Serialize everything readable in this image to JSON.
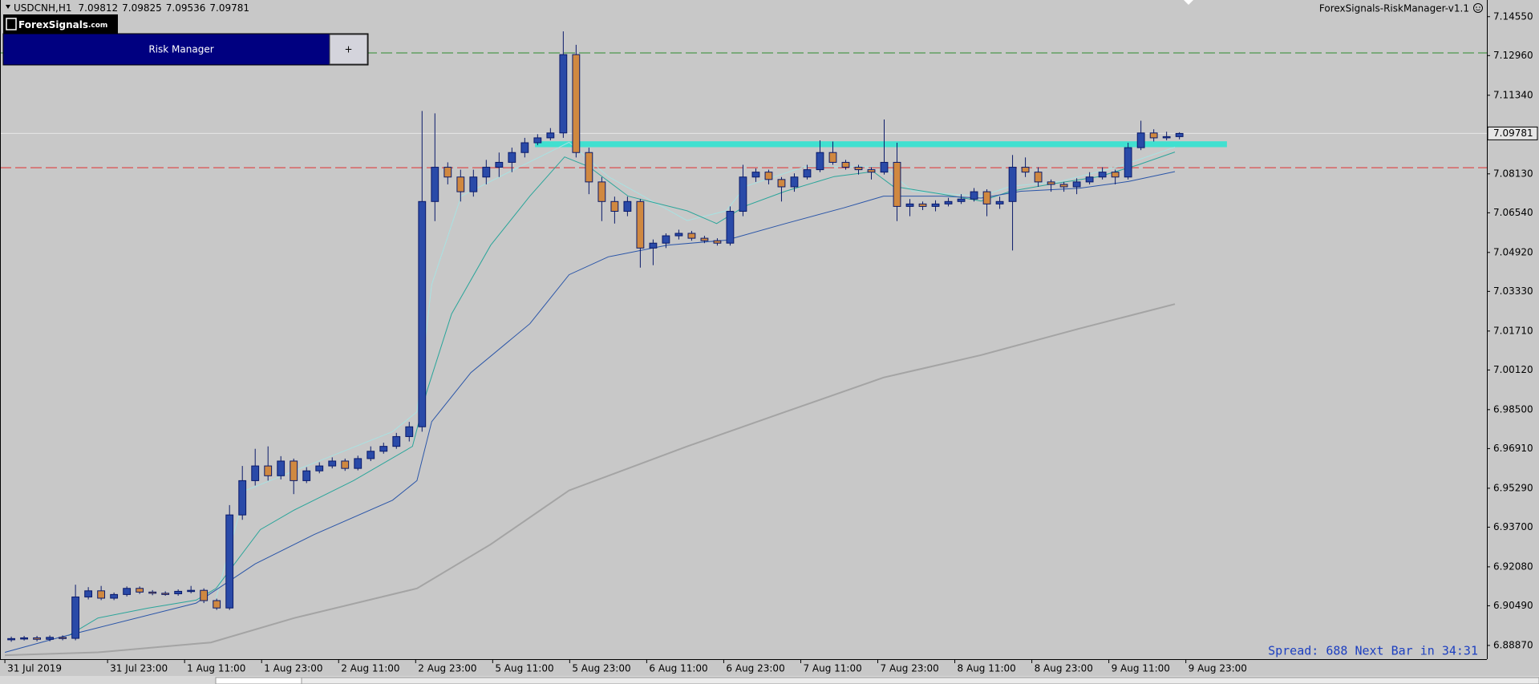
{
  "chart_data": {
    "type": "candlestick",
    "header": {
      "symbol": "USDCNH,H1",
      "quote": [
        "7.09812",
        "7.09825",
        "7.09536",
        "7.09781"
      ]
    },
    "panel": {
      "logo": "ForexSignals",
      "logo_suffix": ".com",
      "title": "Risk Manager",
      "button": "+"
    },
    "indicator": "ForexSignals-RiskManager-v1.1",
    "status": "Spread: 688 Next Bar in 34:31",
    "xlim": [
      -0.76,
      230.9
    ],
    "ylim": [
      6.8831,
      7.1523
    ],
    "grid": false,
    "xticks": [
      {
        "value": 0,
        "label": "31 Jul 2019"
      },
      {
        "value": 16,
        "label": "31 Jul 23:00"
      },
      {
        "value": 28,
        "label": "1 Aug 11:00"
      },
      {
        "value": 40,
        "label": "1 Aug 23:00"
      },
      {
        "value": 52,
        "label": "2 Aug 11:00"
      },
      {
        "value": 64,
        "label": "2 Aug 23:00"
      },
      {
        "value": 76,
        "label": "5 Aug 11:00"
      },
      {
        "value": 88,
        "label": "5 Aug 23:00"
      },
      {
        "value": 100,
        "label": "6 Aug 11:00"
      },
      {
        "value": 112,
        "label": "6 Aug 23:00"
      },
      {
        "value": 124,
        "label": "7 Aug 11:00"
      },
      {
        "value": 136,
        "label": "7 Aug 23:00"
      },
      {
        "value": 148,
        "label": "8 Aug 11:00"
      },
      {
        "value": 160,
        "label": "8 Aug 23:00"
      },
      {
        "value": 172,
        "label": "9 Aug 11:00"
      },
      {
        "value": 184,
        "label": "9 Aug 23:00"
      }
    ],
    "yticks": [
      {
        "value": 7.1455,
        "label": "7.14550"
      },
      {
        "value": 7.1296,
        "label": "7.12960"
      },
      {
        "value": 7.1134,
        "label": "7.11340"
      },
      {
        "value": 7.0813,
        "label": "7.08130"
      },
      {
        "value": 7.0654,
        "label": "7.06540"
      },
      {
        "value": 7.0492,
        "label": "7.04920"
      },
      {
        "value": 7.0333,
        "label": "7.03330"
      },
      {
        "value": 7.0171,
        "label": "7.01710"
      },
      {
        "value": 7.0012,
        "label": "7.00120"
      },
      {
        "value": 6.985,
        "label": "6.98500"
      },
      {
        "value": 6.9691,
        "label": "6.96910"
      },
      {
        "value": 6.9529,
        "label": "6.95290"
      },
      {
        "value": 6.937,
        "label": "6.93700"
      },
      {
        "value": 6.9208,
        "label": "6.92080"
      },
      {
        "value": 6.9049,
        "label": "6.90490"
      },
      {
        "value": 6.8887,
        "label": "6.88870"
      }
    ],
    "current_price": {
      "value": 7.09781,
      "label": "7.09781",
      "color": "#e6e6e6"
    },
    "levels": [
      {
        "value": 7.1307,
        "color": "#2e8b2e"
      },
      {
        "value": 7.0838,
        "color": "#e03030"
      }
    ],
    "zone": {
      "x": [
        82.6,
        190.4
      ],
      "y": [
        7.0922,
        7.0946
      ],
      "color": "#40e0d0"
    },
    "up_color": "#2a4aa8",
    "down_color": "#d08840",
    "outline_color": "#0a1a6a",
    "x": [
      1,
      3,
      5,
      7,
      9,
      11,
      13,
      15,
      17,
      19,
      21,
      23,
      25,
      27,
      29,
      31,
      33,
      35,
      37,
      39,
      41,
      43,
      45,
      47,
      49,
      51,
      53,
      55,
      57,
      59,
      61,
      63,
      65,
      67,
      69,
      71,
      73,
      75,
      77,
      79,
      81,
      83,
      85,
      87,
      89,
      91,
      93,
      95,
      97,
      99,
      101,
      103,
      105,
      107,
      109,
      111,
      113,
      115,
      117,
      119,
      121,
      123,
      125,
      127,
      129,
      131,
      133,
      135,
      137,
      139,
      141,
      143,
      145,
      147,
      149,
      151,
      153,
      155,
      157,
      159,
      161,
      163,
      165,
      167,
      169,
      171,
      173,
      175,
      177,
      179,
      181,
      183
    ],
    "open": [
      6.891,
      6.8915,
      6.8918,
      6.8912,
      6.892,
      6.8916,
      6.9085,
      6.911,
      6.908,
      6.9095,
      6.912,
      6.9105,
      6.91,
      6.9098,
      6.9108,
      6.9112,
      6.907,
      6.904,
      6.942,
      6.956,
      6.962,
      6.958,
      6.964,
      6.956,
      6.96,
      6.962,
      6.964,
      6.961,
      6.965,
      6.968,
      6.97,
      6.974,
      6.978,
      7.07,
      7.084,
      7.08,
      7.074,
      7.08,
      7.084,
      7.086,
      7.09,
      7.094,
      7.096,
      7.098,
      7.13,
      7.09,
      7.078,
      7.07,
      7.066,
      7.07,
      7.051,
      7.053,
      7.056,
      7.057,
      7.055,
      7.054,
      7.053,
      7.066,
      7.08,
      7.082,
      7.079,
      7.076,
      7.08,
      7.083,
      7.09,
      7.086,
      7.084,
      7.083,
      7.082,
      7.086,
      7.068,
      7.069,
      7.068,
      7.069,
      7.07,
      7.071,
      7.074,
      7.069,
      7.07,
      7.084,
      7.082,
      7.078,
      7.077,
      7.076,
      7.078,
      7.08,
      7.082,
      7.08,
      7.092,
      7.098,
      7.096,
      7.0965
    ],
    "high": [
      6.8923,
      6.8926,
      6.8926,
      6.8928,
      6.8928,
      6.9135,
      6.9125,
      6.913,
      6.9103,
      6.9128,
      6.9128,
      6.9113,
      6.9108,
      6.9116,
      6.913,
      6.912,
      6.9078,
      6.946,
      6.962,
      6.969,
      6.97,
      6.966,
      6.965,
      6.9615,
      6.9635,
      6.9655,
      6.965,
      6.9662,
      6.97,
      6.9715,
      6.9755,
      6.98,
      7.107,
      7.106,
      7.086,
      7.083,
      7.083,
      7.087,
      7.09,
      7.092,
      7.096,
      7.0975,
      7.1,
      7.1395,
      7.134,
      7.092,
      7.08,
      7.072,
      7.072,
      7.071,
      7.0545,
      7.057,
      7.0585,
      7.058,
      7.056,
      7.055,
      7.068,
      7.085,
      7.0835,
      7.083,
      7.08,
      7.0815,
      7.085,
      7.095,
      7.0945,
      7.087,
      7.085,
      7.084,
      7.1035,
      7.094,
      7.071,
      7.07,
      7.0705,
      7.0715,
      7.073,
      7.0755,
      7.075,
      7.072,
      7.089,
      7.088,
      7.084,
      7.079,
      7.078,
      7.0795,
      7.082,
      7.084,
      7.083,
      7.094,
      7.103,
      7.0995,
      7.0985,
      7.0983
    ],
    "low": [
      6.8902,
      6.8907,
      6.8904,
      6.8904,
      6.8908,
      6.8908,
      6.9075,
      6.9072,
      6.9072,
      6.9087,
      6.9097,
      6.9092,
      6.909,
      6.909,
      6.91,
      6.906,
      6.9032,
      6.9032,
      6.94,
      6.954,
      6.956,
      6.9565,
      6.9505,
      6.955,
      6.959,
      6.961,
      6.96,
      6.9602,
      6.964,
      6.967,
      6.969,
      6.972,
      6.976,
      7.062,
      7.077,
      7.07,
      7.072,
      7.077,
      7.08,
      7.082,
      7.088,
      7.093,
      7.095,
      7.096,
      7.088,
      7.073,
      7.062,
      7.061,
      7.064,
      7.043,
      7.044,
      7.051,
      7.0545,
      7.054,
      7.053,
      7.052,
      7.052,
      7.064,
      7.078,
      7.077,
      7.07,
      7.074,
      7.079,
      7.082,
      7.085,
      7.083,
      7.081,
      7.079,
      7.081,
      7.062,
      7.064,
      7.0665,
      7.066,
      7.068,
      7.069,
      7.07,
      7.064,
      7.067,
      7.05,
      7.08,
      7.076,
      7.074,
      7.074,
      7.073,
      7.077,
      7.079,
      7.077,
      7.079,
      7.091,
      7.0945,
      7.095,
      7.0954
    ],
    "close": [
      6.8915,
      6.8918,
      6.8912,
      6.892,
      6.8916,
      6.9085,
      6.911,
      6.908,
      6.9095,
      6.912,
      6.9105,
      6.91,
      6.9098,
      6.9108,
      6.9112,
      6.907,
      6.904,
      6.942,
      6.956,
      6.962,
      6.958,
      6.964,
      6.956,
      6.96,
      6.962,
      6.964,
      6.961,
      6.965,
      6.968,
      6.97,
      6.974,
      6.978,
      7.07,
      7.084,
      7.08,
      7.074,
      7.08,
      7.084,
      7.086,
      7.09,
      7.094,
      7.096,
      7.098,
      7.13,
      7.09,
      7.078,
      7.07,
      7.066,
      7.07,
      7.051,
      7.053,
      7.056,
      7.057,
      7.055,
      7.054,
      7.053,
      7.066,
      7.08,
      7.082,
      7.079,
      7.076,
      7.08,
      7.083,
      7.09,
      7.086,
      7.084,
      7.083,
      7.082,
      7.086,
      7.068,
      7.069,
      7.068,
      7.069,
      7.07,
      7.071,
      7.074,
      7.069,
      7.07,
      7.084,
      7.082,
      7.078,
      7.077,
      7.076,
      7.078,
      7.08,
      7.082,
      7.08,
      7.092,
      7.098,
      7.096,
      7.0965,
      7.0978
    ],
    "series": [
      {
        "color": "#a9e2e2",
        "width": 1,
        "x": [
          32.9,
          37.5,
          45.1,
          60.4,
          64.2,
          66.5,
          71.1,
          78.7,
          84.9,
          87.9,
          94.0,
          106.3,
          112.4,
          115.4,
          124.6,
          132.3,
          136.9,
          141.4,
          152.1,
          156.7,
          164.4,
          173.5,
          182.3
        ],
        "values": [
          6.908,
          6.952,
          6.96,
          6.976,
          6.9841,
          7.0361,
          7.0722,
          7.0822,
          7.0902,
          7.0942,
          7.0802,
          7.0622,
          7.0662,
          7.0762,
          7.0842,
          7.0842,
          7.0842,
          7.0742,
          7.0722,
          7.0762,
          7.0782,
          7.0842,
          7.0922
        ]
      },
      {
        "color": "#2aa59a",
        "width": 1,
        "x": [
          9.9,
          14.5,
          22.2,
          29.8,
          32.9,
          39.8,
          45.1,
          54.3,
          63.5,
          65.7,
          69.6,
          75.7,
          81.8,
          87.2,
          91.0,
          97.1,
          106.3,
          110.9,
          115.4,
          121.6,
          129.2,
          135.3,
          138.4,
          146.0,
          152.1,
          156.7,
          162.8,
          170.5,
          176.6,
          182.3
        ],
        "values": [
          6.8927,
          6.8999,
          6.9039,
          6.9072,
          6.912,
          6.936,
          6.944,
          6.956,
          6.97,
          6.9921,
          7.0241,
          7.0522,
          7.0722,
          7.0882,
          7.0842,
          7.0722,
          7.0662,
          7.061,
          7.0682,
          7.0742,
          7.0802,
          7.0822,
          7.0762,
          7.073,
          7.0702,
          7.0742,
          7.077,
          7.0802,
          7.085,
          7.0902
        ]
      },
      {
        "color": "#2a55a8",
        "width": 1,
        "x": [
          0,
          8.4,
          14.5,
          29.8,
          39.0,
          48.2,
          60.4,
          64.2,
          66.5,
          72.6,
          81.8,
          87.9,
          94.0,
          103.2,
          112.4,
          121.6,
          130.7,
          136.9,
          146.0,
          152.1,
          158.3,
          167.4,
          175.1,
          182.3
        ],
        "values": [
          6.8859,
          6.8919,
          6.8959,
          6.906,
          6.922,
          6.934,
          6.948,
          6.956,
          6.9801,
          7.0001,
          7.0201,
          7.0401,
          7.0474,
          7.0522,
          7.0542,
          7.061,
          7.0674,
          7.0722,
          7.0722,
          7.0714,
          7.0742,
          7.0754,
          7.0782,
          7.0822
        ]
      },
      {
        "color": "#a4a4a4",
        "width": 2,
        "x": [
          0,
          14.5,
          32.1,
          45.1,
          64.2,
          75.7,
          87.9,
          106.3,
          121.6,
          136.9,
          152.1,
          167.4,
          182.3
        ],
        "values": [
          6.8847,
          6.8859,
          6.8899,
          6.8999,
          6.912,
          6.93,
          6.952,
          6.97,
          6.9841,
          6.9981,
          7.0073,
          7.0181,
          7.0281
        ]
      }
    ]
  }
}
